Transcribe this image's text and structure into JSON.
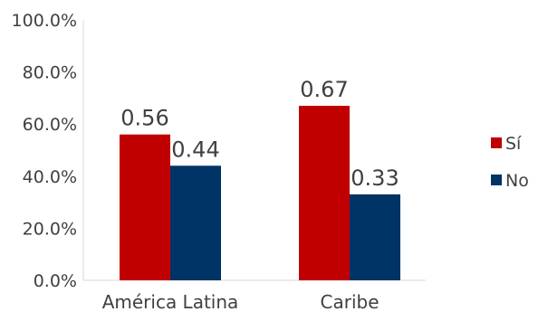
{
  "chart_data": {
    "type": "bar",
    "categories": [
      "América Latina",
      "Caribe"
    ],
    "series": [
      {
        "name": "Sí",
        "color": "#C00000",
        "values": [
          0.56,
          0.67
        ],
        "labels": [
          "0.56",
          "0.67"
        ]
      },
      {
        "name": "No",
        "color": "#003366",
        "values": [
          0.44,
          0.33
        ],
        "labels": [
          "0.44",
          "0.33"
        ]
      }
    ],
    "ylim": [
      0,
      1
    ],
    "yticks": [
      {
        "value": 0,
        "label": "0.0%"
      },
      {
        "value": 0.2,
        "label": "20.0%"
      },
      {
        "value": 0.4,
        "label": "40.0%"
      },
      {
        "value": 0.6,
        "label": "60.0%"
      },
      {
        "value": 0.8,
        "label": "80.0%"
      },
      {
        "value": 1.0,
        "label": "100.0%"
      }
    ],
    "grid": false,
    "legend": {
      "position": "right"
    },
    "axis_color": "#D9D9D9"
  }
}
